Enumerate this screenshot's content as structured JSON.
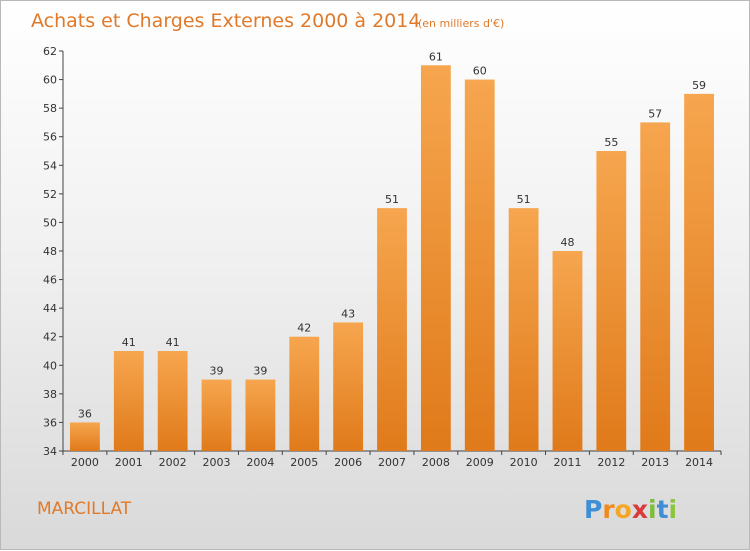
{
  "chart_data": {
    "type": "bar",
    "title": "Achats et Charges Externes 2000 à 2014",
    "subtitle": "(en milliers d'€)",
    "categories": [
      "2000",
      "2001",
      "2002",
      "2003",
      "2004",
      "2005",
      "2006",
      "2007",
      "2008",
      "2009",
      "2010",
      "2011",
      "2012",
      "2013",
      "2014"
    ],
    "values": [
      36,
      41,
      41,
      39,
      39,
      42,
      43,
      51,
      61,
      60,
      51,
      48,
      55,
      57,
      59
    ],
    "ylim": [
      34,
      62
    ],
    "yticks": [
      34,
      36,
      38,
      40,
      42,
      44,
      46,
      48,
      50,
      52,
      54,
      56,
      58,
      60,
      62
    ],
    "grid": false,
    "bar_color": "#f0902f"
  },
  "location": "MARCILLAT",
  "brand": {
    "letters": [
      "P",
      "r",
      "o",
      "x",
      "i",
      "t",
      "i"
    ],
    "colors": [
      "#3f8fd6",
      "#f08a1c",
      "#f5a623",
      "#d93a3a",
      "#7cbd3a",
      "#3f8fd6",
      "#8cc63f"
    ]
  }
}
